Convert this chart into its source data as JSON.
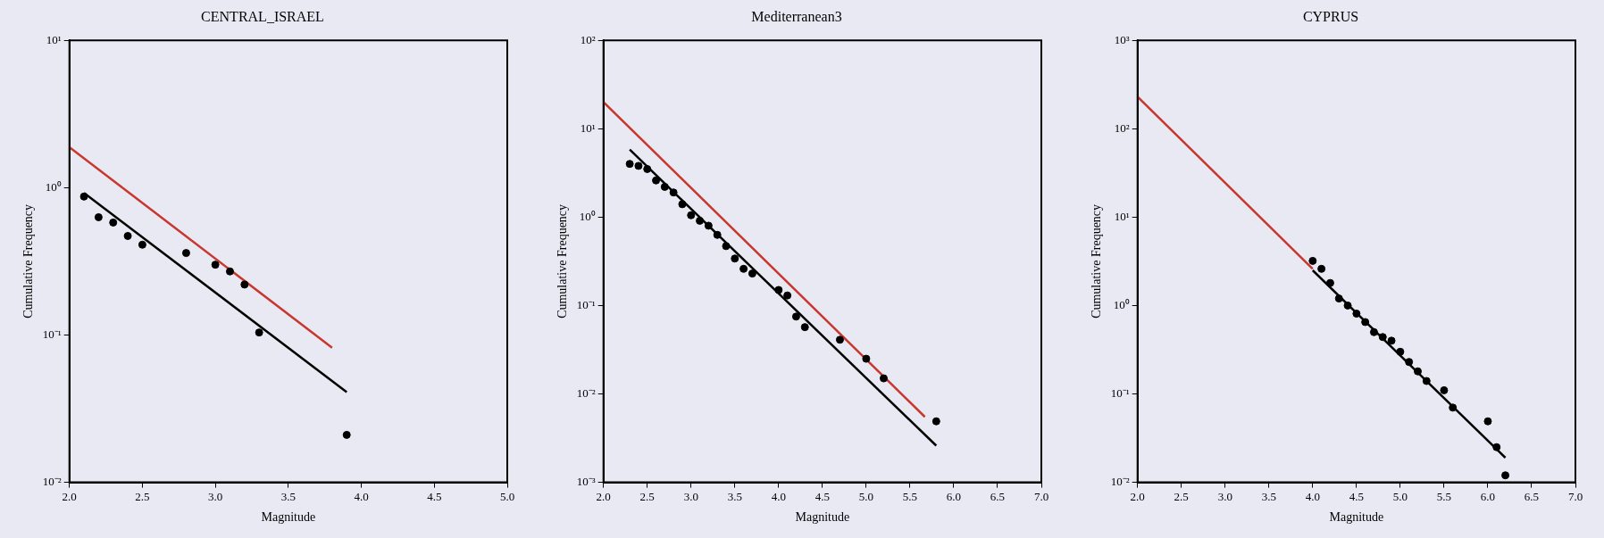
{
  "chart_data": [
    {
      "type": "scatter",
      "title": "CENTRAL_ISRAEL",
      "xlabel": "Magnitude",
      "ylabel": "Cumulative Frequency",
      "log": "y",
      "grid": false,
      "xlim": [
        2,
        5
      ],
      "xticks": [
        {
          "value": 2,
          "label": "2.0"
        },
        {
          "value": 2.5,
          "label": "2.5"
        },
        {
          "value": 3,
          "label": "3.0"
        },
        {
          "value": 3.5,
          "label": "3.5"
        },
        {
          "value": 4,
          "label": "4.0"
        },
        {
          "value": 4.5,
          "label": "4.5"
        },
        {
          "value": 5,
          "label": "5.0"
        }
      ],
      "ylim": [
        0.01,
        10
      ],
      "yticks": [
        {
          "value": 0.01,
          "label": "10⁻²"
        },
        {
          "value": 0.1,
          "label": "10⁻¹"
        },
        {
          "value": 1,
          "label": "10⁰"
        },
        {
          "value": 10,
          "label": "10¹"
        }
      ],
      "series": [
        {
          "marker": "circle",
          "color": "#000000",
          "x": [
            2.1,
            2.2,
            2.3,
            2.4,
            2.5,
            2.8,
            3.0,
            3.1,
            3.2,
            3.3,
            3.9
          ],
          "values": [
            0.87,
            0.63,
            0.58,
            0.47,
            0.41,
            0.36,
            0.3,
            0.27,
            0.22,
            0.104,
            0.021
          ]
        },
        {
          "type": "line",
          "marker": "none",
          "color": "#c8372d",
          "x": [
            2.0,
            3.8
          ],
          "values": [
            1.88,
            0.082
          ]
        },
        {
          "type": "line",
          "marker": "none",
          "color": "#000000",
          "x": [
            2.1,
            3.9
          ],
          "values": [
            0.92,
            0.041
          ]
        }
      ]
    },
    {
      "type": "scatter",
      "title": "Mediterranean3",
      "xlabel": "Magnitude",
      "ylabel": "Cumulative Frequency",
      "log": "y",
      "grid": false,
      "xlim": [
        2,
        7
      ],
      "xticks": [
        {
          "value": 2,
          "label": "2.0"
        },
        {
          "value": 2.5,
          "label": "2.5"
        },
        {
          "value": 3,
          "label": "3.0"
        },
        {
          "value": 3.5,
          "label": "3.5"
        },
        {
          "value": 4,
          "label": "4.0"
        },
        {
          "value": 4.5,
          "label": "4.5"
        },
        {
          "value": 5,
          "label": "5.0"
        },
        {
          "value": 5.5,
          "label": "5.5"
        },
        {
          "value": 6,
          "label": "6.0"
        },
        {
          "value": 6.5,
          "label": "6.5"
        },
        {
          "value": 7,
          "label": "7.0"
        }
      ],
      "ylim": [
        0.001,
        100
      ],
      "yticks": [
        {
          "value": 0.001,
          "label": "10⁻³"
        },
        {
          "value": 0.01,
          "label": "10⁻²"
        },
        {
          "value": 0.1,
          "label": "10⁻¹"
        },
        {
          "value": 1,
          "label": "10⁰"
        },
        {
          "value": 10,
          "label": "10¹"
        },
        {
          "value": 100,
          "label": "10²"
        }
      ],
      "series": [
        {
          "marker": "circle",
          "color": "#000000",
          "x": [
            2.3,
            2.4,
            2.5,
            2.6,
            2.7,
            2.8,
            2.9,
            3.0,
            3.1,
            3.2,
            3.3,
            3.4,
            3.5,
            3.6,
            3.7,
            4.0,
            4.1,
            4.2,
            4.3,
            4.7,
            5.0,
            5.2,
            5.8
          ],
          "values": [
            4.0,
            3.8,
            3.5,
            2.6,
            2.2,
            1.9,
            1.4,
            1.05,
            0.91,
            0.8,
            0.63,
            0.47,
            0.34,
            0.26,
            0.23,
            0.15,
            0.13,
            0.075,
            0.057,
            0.041,
            0.025,
            0.015,
            0.0049
          ]
        },
        {
          "type": "line",
          "marker": "none",
          "color": "#c8372d",
          "x": [
            2.0,
            5.67
          ],
          "values": [
            20,
            0.0055
          ]
        },
        {
          "type": "line",
          "marker": "none",
          "color": "#000000",
          "x": [
            2.3,
            5.8
          ],
          "values": [
            5.8,
            0.0026
          ]
        }
      ]
    },
    {
      "type": "scatter",
      "title": "CYPRUS",
      "xlabel": "Magnitude",
      "ylabel": "Cumulative Frequency",
      "log": "y",
      "grid": false,
      "xlim": [
        2,
        7
      ],
      "xticks": [
        {
          "value": 2,
          "label": "2.0"
        },
        {
          "value": 2.5,
          "label": "2.5"
        },
        {
          "value": 3,
          "label": "3.0"
        },
        {
          "value": 3.5,
          "label": "3.5"
        },
        {
          "value": 4,
          "label": "4.0"
        },
        {
          "value": 4.5,
          "label": "4.5"
        },
        {
          "value": 5,
          "label": "5.0"
        },
        {
          "value": 5.5,
          "label": "5.5"
        },
        {
          "value": 6,
          "label": "6.0"
        },
        {
          "value": 6.5,
          "label": "6.5"
        },
        {
          "value": 7,
          "label": "7.0"
        }
      ],
      "ylim": [
        0.01,
        1000
      ],
      "yticks": [
        {
          "value": 0.01,
          "label": "10⁻²"
        },
        {
          "value": 0.1,
          "label": "10⁻¹"
        },
        {
          "value": 1,
          "label": "10⁰"
        },
        {
          "value": 10,
          "label": "10¹"
        },
        {
          "value": 100,
          "label": "10²"
        },
        {
          "value": 1000,
          "label": "10³"
        }
      ],
      "series": [
        {
          "marker": "circle",
          "color": "#000000",
          "x": [
            4.0,
            4.1,
            4.2,
            4.3,
            4.4,
            4.5,
            4.6,
            4.7,
            4.8,
            4.9,
            5.0,
            5.1,
            5.2,
            5.3,
            5.5,
            5.6,
            6.0,
            6.1,
            6.2
          ],
          "values": [
            3.2,
            2.6,
            1.8,
            1.2,
            1.0,
            0.81,
            0.65,
            0.5,
            0.44,
            0.4,
            0.3,
            0.23,
            0.18,
            0.14,
            0.11,
            0.07,
            0.049,
            0.025,
            0.012
          ]
        },
        {
          "type": "line",
          "marker": "none",
          "color": "#c8372d",
          "x": [
            2.0,
            4.0
          ],
          "values": [
            230,
            2.6
          ]
        },
        {
          "type": "line",
          "marker": "none",
          "color": "#000000",
          "x": [
            4.0,
            6.2
          ],
          "values": [
            2.5,
            0.019
          ]
        }
      ]
    }
  ]
}
